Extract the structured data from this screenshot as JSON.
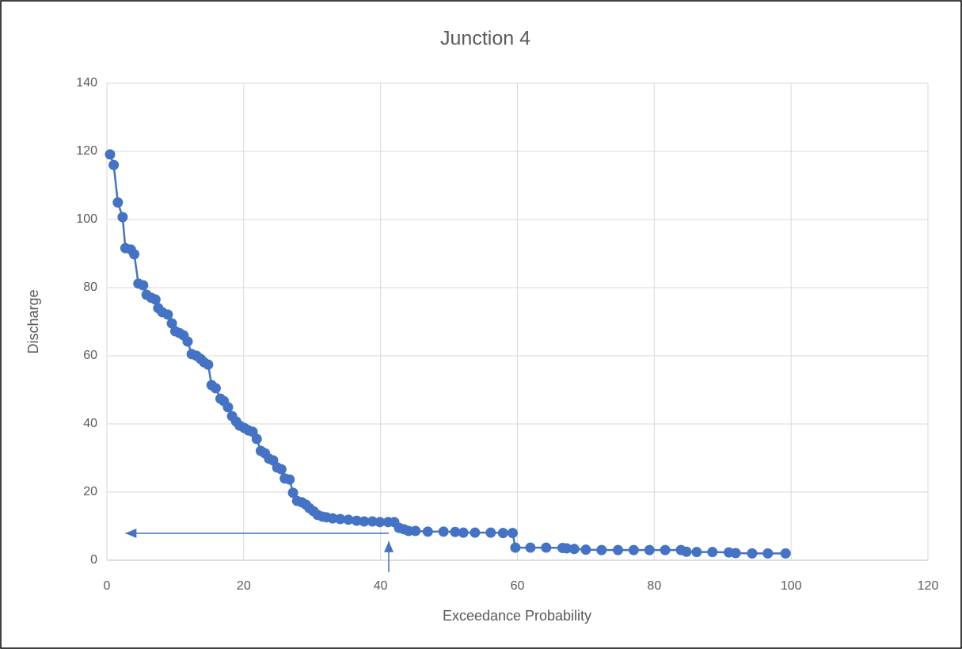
{
  "chart_data": {
    "type": "scatter",
    "title": "Junction 4",
    "xlabel": "Exceedance Probability",
    "ylabel": "Discharge",
    "xlim": [
      0,
      120
    ],
    "xticks": [
      0,
      20,
      40,
      60,
      80,
      100,
      120
    ],
    "ylim": [
      0,
      140
    ],
    "yticks": [
      0,
      20,
      40,
      60,
      80,
      100,
      120,
      140
    ],
    "grid": true,
    "x": [
      0.46,
      1.0,
      1.6,
      2.3,
      2.7,
      3.5,
      4.0,
      4.6,
      5.3,
      5.8,
      6.5,
      7.1,
      7.5,
      8.1,
      8.9,
      9.5,
      10.0,
      10.6,
      11.2,
      11.8,
      12.4,
      13.1,
      13.7,
      14.2,
      14.8,
      15.3,
      15.9,
      16.6,
      17.1,
      17.7,
      18.3,
      18.9,
      19.4,
      20.1,
      20.7,
      21.3,
      21.9,
      22.5,
      23.1,
      23.7,
      24.3,
      24.9,
      25.5,
      26.0,
      26.7,
      27.2,
      27.8,
      28.5,
      29.1,
      29.6,
      30.2,
      30.8,
      31.5,
      32.1,
      33.0,
      34.1,
      35.3,
      36.5,
      37.6,
      38.8,
      39.9,
      41.1,
      42.0,
      42.7,
      43.4,
      44.1,
      45.1,
      46.9,
      49.2,
      50.9,
      52.1,
      53.8,
      56.1,
      57.9,
      59.3,
      59.7,
      61.9,
      64.2,
      66.6,
      67.2,
      68.3,
      70.0,
      72.3,
      74.7,
      77.0,
      79.3,
      81.6,
      83.9,
      84.7,
      86.2,
      88.5,
      90.9,
      91.9,
      94.3,
      96.6,
      99.2
    ],
    "series": [
      {
        "color": "#4472c4",
        "values": [
          119.1,
          116,
          105,
          100.7,
          91.6,
          91.2,
          89.8,
          81.2,
          80.7,
          77.9,
          77,
          76.5,
          74,
          72.8,
          72.1,
          69.5,
          67.2,
          66.7,
          66,
          64.2,
          60.5,
          60,
          59.1,
          58.1,
          57.4,
          51.4,
          50.5,
          47.4,
          46.7,
          44.9,
          42.3,
          40.7,
          39.5,
          38.8,
          38.1,
          37.7,
          35.6,
          32.1,
          31.4,
          29.8,
          29.3,
          27.2,
          26.7,
          24,
          23.7,
          19.8,
          17.4,
          17,
          16.3,
          15.3,
          14.4,
          13.3,
          12.8,
          12.6,
          12.3,
          12.1,
          11.9,
          11.6,
          11.4,
          11.4,
          11.2,
          11.2,
          11.2,
          9.5,
          9.1,
          8.6,
          8.6,
          8.4,
          8.4,
          8.3,
          8.1,
          8.1,
          8.1,
          8.0,
          8.0,
          3.7,
          3.7,
          3.7,
          3.6,
          3.5,
          3.3,
          3.1,
          3.0,
          3.0,
          3.0,
          3.0,
          3.0,
          3.0,
          2.5,
          2.4,
          2.4,
          2.3,
          2.1,
          2.0,
          2.0,
          2.0
        ]
      }
    ],
    "arrows": [
      {
        "from": [
          41.2,
          7.9
        ],
        "to": [
          2.7,
          7.9
        ]
      },
      {
        "from": [
          41.2,
          -3.5
        ],
        "to": [
          41.2,
          5.6
        ]
      }
    ]
  }
}
